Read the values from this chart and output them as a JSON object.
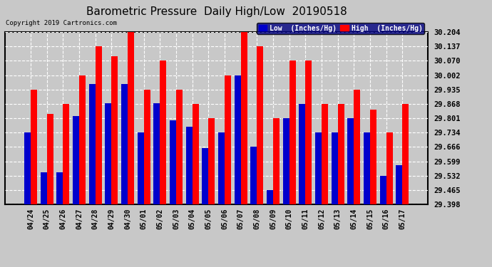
{
  "title": "Barometric Pressure  Daily High/Low  20190518",
  "copyright": "Copyright 2019 Cartronics.com",
  "legend_low": "Low  (Inches/Hg)",
  "legend_high": "High  (Inches/Hg)",
  "dates": [
    "04/24",
    "04/25",
    "04/26",
    "04/27",
    "04/28",
    "04/29",
    "04/30",
    "05/01",
    "05/02",
    "05/03",
    "05/04",
    "05/05",
    "05/06",
    "05/07",
    "05/08",
    "05/09",
    "05/10",
    "05/11",
    "05/12",
    "05/13",
    "05/14",
    "05/15",
    "05/16",
    "05/17"
  ],
  "low_values": [
    29.735,
    29.548,
    29.548,
    29.81,
    29.96,
    29.87,
    29.96,
    29.735,
    29.87,
    29.79,
    29.76,
    29.66,
    29.735,
    30.002,
    29.666,
    29.465,
    29.801,
    29.868,
    29.735,
    29.735,
    29.801,
    29.735,
    29.532,
    29.58
  ],
  "high_values": [
    29.935,
    29.82,
    29.868,
    30.002,
    30.137,
    30.09,
    30.204,
    29.935,
    30.07,
    29.935,
    29.868,
    29.8,
    30.002,
    30.204,
    30.137,
    29.8,
    30.07,
    30.07,
    29.868,
    29.868,
    29.935,
    29.84,
    29.734,
    29.868
  ],
  "ymin": 29.398,
  "ymax": 30.204,
  "yticks": [
    29.398,
    29.465,
    29.532,
    29.599,
    29.666,
    29.734,
    29.801,
    29.868,
    29.935,
    30.002,
    30.07,
    30.137,
    30.204
  ],
  "bar_color_low": "#0000cc",
  "bar_color_high": "#ff0000",
  "background_color": "#c8c8c8",
  "plot_bg_color": "#c8c8c8",
  "grid_color": "#ffffff",
  "title_color": "#000000",
  "title_fontsize": 11,
  "copyright_fontsize": 6.5,
  "legend_bg": "#000080",
  "legend_fontsize": 7
}
